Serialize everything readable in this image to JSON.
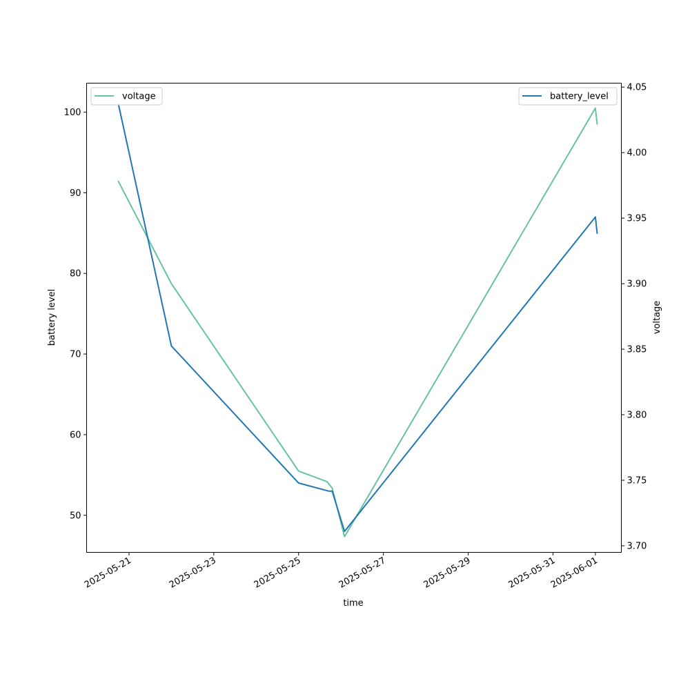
{
  "chart_data": {
    "type": "line",
    "xlabel": "time",
    "ylabel_left": "battery level",
    "ylabel_right": "voltage",
    "x_ticks": [
      "2025-05-21",
      "2025-05-23",
      "2025-05-25",
      "2025-05-27",
      "2025-05-29",
      "2025-05-31",
      "2025-06-01"
    ],
    "y_left_ticks": [
      "50",
      "60",
      "70",
      "80",
      "90",
      "100"
    ],
    "y_right_ticks": [
      "3.70",
      "3.75",
      "3.80",
      "3.85",
      "3.90",
      "3.95",
      "4.00",
      "4.05"
    ],
    "xlim": [
      "2025-05-20T00:00",
      "2025-06-01T14:42"
    ],
    "ylim_left": [
      45.4,
      103.6
    ],
    "ylim_right": [
      3.695,
      4.053
    ],
    "grid": false,
    "series": [
      {
        "name": "battery_level",
        "axis": "left",
        "color": "#1f77b4",
        "legend_position": "upper right",
        "points": [
          {
            "x": "2025-05-20T18:00",
            "y": 101
          },
          {
            "x": "2025-05-22T00:00",
            "y": 71
          },
          {
            "x": "2025-05-25T00:00",
            "y": 54
          },
          {
            "x": "2025-05-25T17:00",
            "y": 53
          },
          {
            "x": "2025-05-25T19:00",
            "y": 53
          },
          {
            "x": "2025-05-26T02:00",
            "y": 48
          },
          {
            "x": "2025-06-01T00:00",
            "y": 87
          },
          {
            "x": "2025-06-01T01:00",
            "y": 85
          }
        ]
      },
      {
        "name": "voltage",
        "axis": "right",
        "color": "#66c2a5",
        "legend_position": "upper left",
        "points": [
          {
            "x": "2025-05-20T18:00",
            "y": 3.978
          },
          {
            "x": "2025-05-22T00:00",
            "y": 3.9
          },
          {
            "x": "2025-05-25T00:00",
            "y": 3.757
          },
          {
            "x": "2025-05-25T16:00",
            "y": 3.749
          },
          {
            "x": "2025-05-25T19:00",
            "y": 3.744
          },
          {
            "x": "2025-05-26T02:00",
            "y": 3.707
          },
          {
            "x": "2025-06-01T00:00",
            "y": 4.034
          },
          {
            "x": "2025-06-01T01:00",
            "y": 4.022
          }
        ]
      }
    ]
  }
}
